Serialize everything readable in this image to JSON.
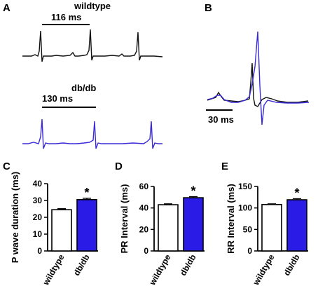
{
  "panels": {
    "A": "A",
    "B": "B",
    "C": "C",
    "D": "D",
    "E": "E"
  },
  "traces": {
    "wildtype_label": "wildtype",
    "wildtype_interval": "116 ms",
    "dbdb_label": "db/db",
    "dbdb_interval": "130 ms",
    "overlay_scale": "30 ms",
    "wildtype_color": "#111111",
    "dbdb_color": "#3a2bd6"
  },
  "colors": {
    "wildtype_bar": "#ffffff",
    "dbdb_bar": "#2a1be6",
    "axis": "#000000"
  },
  "chart_data": [
    {
      "type": "bar",
      "panel": "C",
      "categories": [
        "wildtype",
        "db/db"
      ],
      "values": [
        24.5,
        30.5
      ],
      "errors": [
        0.6,
        0.8
      ],
      "ylabel": "P wave duration (ms)",
      "ylim": [
        0,
        40
      ],
      "yticks": [
        "0",
        "10",
        "20",
        "30",
        "40"
      ],
      "significance": [
        "",
        "*"
      ]
    },
    {
      "type": "bar",
      "panel": "D",
      "categories": [
        "wildtype",
        "db/db"
      ],
      "values": [
        43,
        49.5
      ],
      "errors": [
        0.8,
        1.0
      ],
      "ylabel": "PR Interval (ms)",
      "ylim": [
        0,
        60
      ],
      "yticks": [
        "0",
        "20",
        "40",
        "60"
      ],
      "significance": [
        "",
        "*"
      ]
    },
    {
      "type": "bar",
      "panel": "E",
      "categories": [
        "wildtype",
        "db/db"
      ],
      "values": [
        108,
        119
      ],
      "errors": [
        1.5,
        2.5
      ],
      "ylabel": "RR Interval (ms)",
      "ylim": [
        0,
        150
      ],
      "yticks": [
        "0",
        "50",
        "100",
        "150"
      ],
      "significance": [
        "",
        "*"
      ]
    }
  ]
}
